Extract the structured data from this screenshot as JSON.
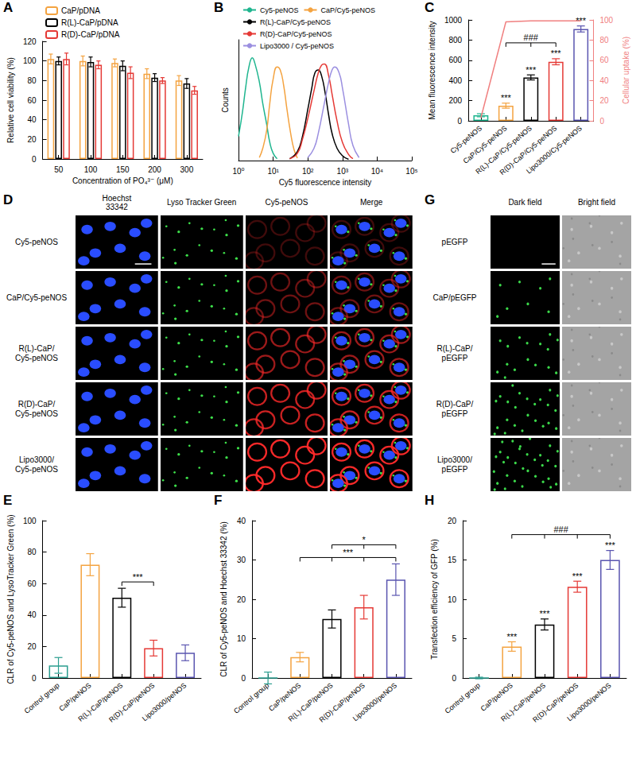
{
  "chart_data": [
    {
      "panel": "A",
      "type": "bar",
      "x_label": "Concentration of PO₄³⁻ (μM)",
      "y_label": "Relative cell viability (%)",
      "categories": [
        "50",
        "100",
        "150",
        "200",
        "300"
      ],
      "series": [
        {
          "name": "CaP/pDNA",
          "color": "#f4a340",
          "values": [
            102,
            100,
            98,
            87,
            80
          ],
          "errors": [
            5,
            5,
            4,
            5,
            5
          ]
        },
        {
          "name": "R(L)-CaP/pDNA",
          "color": "#000000",
          "values": [
            100,
            99,
            95,
            83,
            77
          ],
          "errors": [
            4,
            5,
            5,
            4,
            5
          ]
        },
        {
          "name": "R(D)-CaP/pDNA",
          "color": "#e53935",
          "values": [
            102,
            96,
            88,
            80,
            70
          ],
          "errors": [
            6,
            4,
            6,
            3,
            4
          ]
        }
      ],
      "ylim": [
        0,
        120
      ],
      "yticks": [
        0,
        20,
        40,
        60,
        80,
        100,
        120
      ],
      "legend": "top-left",
      "grid": false
    },
    {
      "panel": "B",
      "type": "line",
      "x_label": "Cy5 fluorescence intensity",
      "y_label": "Counts",
      "log": "x",
      "xlim": [
        1,
        100000
      ],
      "xticks": [
        {
          "value": 1,
          "label": "10⁰"
        },
        {
          "value": 10,
          "label": "10¹"
        },
        {
          "value": 100,
          "label": "10²"
        },
        {
          "value": 1000,
          "label": "10³"
        },
        {
          "value": 10000,
          "label": "10⁴"
        },
        {
          "value": 100000,
          "label": "10⁵"
        }
      ],
      "ylim": [
        0,
        200
      ],
      "tick_labels": "x",
      "series": [
        {
          "name": "Cy5-peNOS",
          "color": "#1fb58f",
          "x": [
            1,
            1.3,
            1.6,
            2,
            2.5,
            3,
            4,
            5,
            6.5,
            8,
            10,
            13
          ],
          "values": [
            40,
            80,
            120,
            155,
            170,
            160,
            130,
            95,
            60,
            30,
            12,
            3
          ]
        },
        {
          "name": "CaP/Cy5-peNOS",
          "color": "#f4a340",
          "x": [
            4,
            5,
            6.5,
            8,
            10,
            13,
            16,
            20,
            25,
            32,
            40,
            50
          ],
          "values": [
            5,
            20,
            50,
            95,
            135,
            155,
            150,
            125,
            85,
            45,
            18,
            4
          ]
        },
        {
          "name": "R(L)-CaP/Cy5-peNOS",
          "color": "#000000",
          "x": [
            30,
            50,
            70,
            100,
            130,
            160,
            200,
            250,
            320,
            400,
            500,
            700,
            1000,
            1500
          ],
          "values": [
            3,
            15,
            40,
            85,
            120,
            145,
            150,
            140,
            110,
            75,
            45,
            20,
            8,
            2
          ]
        },
        {
          "name": "R(D)-CaP/Cy5-peNOS",
          "color": "#e53935",
          "x": [
            30,
            50,
            70,
            100,
            150,
            200,
            250,
            300,
            400,
            500,
            700,
            1000,
            1500,
            2000
          ],
          "values": [
            3,
            12,
            35,
            70,
            115,
            145,
            158,
            160,
            140,
            110,
            65,
            30,
            10,
            3
          ]
        },
        {
          "name": "Lipo3000 / Cy5-peNOS",
          "color": "#9b8fe0",
          "x": [
            100,
            150,
            200,
            300,
            400,
            500,
            600,
            800,
            1000,
            1500,
            2000,
            3000
          ],
          "values": [
            5,
            20,
            45,
            95,
            130,
            150,
            155,
            145,
            120,
            60,
            25,
            5
          ]
        }
      ],
      "legend": "top-left",
      "grid": false
    },
    {
      "panel": "C",
      "type": "bar",
      "y_label": "Mean fluorescence intensity",
      "y2_label": "Cellular uptake (%)",
      "categories": [
        "Cy5-peNOS",
        "CaP/Cy5-peNOS",
        "R(L)-CaP/Cy5-peNOS",
        "R(D)-CaP/Cy5-peNOS",
        "Lipo3000/Cy5-peNOS"
      ],
      "series": [
        {
          "type": "bar",
          "colors": [
            "#1fb58f",
            "#f4a340",
            "#000000",
            "#e53935",
            "#5a55b0"
          ],
          "values": [
            55,
            150,
            430,
            585,
            910
          ],
          "errors": [
            15,
            25,
            25,
            30,
            30
          ]
        },
        {
          "type": "line",
          "axis": "y2",
          "color": "#f08080",
          "values": [
            3,
            98,
            99,
            99,
            99
          ]
        }
      ],
      "ylim": [
        0,
        1000
      ],
      "yticks": [
        0,
        200,
        400,
        600,
        800,
        1000
      ],
      "y2lim": [
        0,
        100
      ],
      "y2ticks": [
        0,
        20,
        40,
        60,
        80,
        100
      ],
      "annotations": [
        null,
        "***",
        "***",
        "***",
        "***"
      ],
      "brackets": [
        {
          "from": [
            1
          ],
          "to": [
            2,
            3
          ],
          "label": "###"
        }
      ],
      "grid": false
    },
    {
      "panel": "D",
      "type": "image_grid",
      "columns": [
        "Hoechst\n33342",
        "Lyso Tracker Green",
        "Cy5-peNOS",
        "Merge"
      ],
      "rows": [
        "Cy5-peNOS",
        "CaP/Cy5-peNOS",
        "R(L)-CaP/\nCy5-peNOS",
        "R(D)-CaP/\nCy5-peNOS",
        "Lipo3000/\nCy5-peNOS"
      ]
    },
    {
      "panel": "G",
      "type": "image_grid",
      "columns": [
        "Dark field",
        "Bright field"
      ],
      "rows": [
        "pEGFP",
        "CaP/pEGFP",
        "R(L)-CaP/\npEGFP",
        "R(D)-CaP/\npEGFP",
        "Lipo3000/\npEGFP"
      ]
    },
    {
      "panel": "E",
      "type": "bar",
      "y_label": "CLR of Cy5-peNOS and LysoTracker Green (%)",
      "categories": [
        "Control group",
        "CaP/peNOS",
        "R(L)-CaP/peNOS",
        "R(D)-CaP/peNOS",
        "Lipo3000/peNOS"
      ],
      "series": [
        {
          "type": "bar",
          "colors": [
            "#2a9d8f",
            "#f4a340",
            "#000000",
            "#e53935",
            "#5a55b0"
          ],
          "values": [
            8,
            72,
            51,
            19,
            16
          ],
          "errors": [
            5,
            7,
            6,
            5,
            5
          ]
        }
      ],
      "ylim": [
        0,
        100
      ],
      "yticks": [
        0,
        20,
        40,
        60,
        80,
        100
      ],
      "brackets": [
        {
          "from": [
            2
          ],
          "to": [
            3
          ],
          "label": "***"
        }
      ],
      "grid": false
    },
    {
      "panel": "F",
      "type": "bar",
      "y_label": "CLR of Cy5-peNOS and Hoechst 33342 (%)",
      "categories": [
        "Control group",
        "CaP/peNOS",
        "R(L)-CaP/peNOS",
        "R(D)-CaP/peNOS",
        "Lipo3000/peNOS"
      ],
      "series": [
        {
          "type": "bar",
          "colors": [
            "#2a9d8f",
            "#f4a340",
            "#000000",
            "#e53935",
            "#5a55b0"
          ],
          "values": [
            0,
            5.3,
            15,
            18,
            25
          ],
          "errors": [
            1.5,
            1.2,
            2.3,
            3,
            4
          ]
        }
      ],
      "ylim": [
        0,
        40
      ],
      "yticks": [
        0,
        10,
        20,
        30,
        40
      ],
      "brackets": [
        {
          "from": [
            1
          ],
          "to": [
            2,
            3,
            4
          ],
          "label": "***"
        },
        {
          "from": [
            2,
            3
          ],
          "to": [
            4
          ],
          "label": "*"
        }
      ],
      "grid": false
    },
    {
      "panel": "H",
      "type": "bar",
      "y_label": "Transfection efficiency of GFP (%)",
      "categories": [
        "Control group",
        "CaP/peNOS",
        "R(L)-CaP/peNOS",
        "R(D)-CaP/peNOS",
        "Lipo3000/peNOS"
      ],
      "series": [
        {
          "type": "bar",
          "colors": [
            "#2a9d8f",
            "#f4a340",
            "#000000",
            "#e53935",
            "#5a55b0"
          ],
          "values": [
            0,
            4,
            6.8,
            11.6,
            15
          ],
          "errors": [
            0.1,
            0.6,
            0.7,
            0.7,
            1.2
          ]
        }
      ],
      "ylim": [
        0,
        20
      ],
      "yticks": [
        0,
        5,
        10,
        15,
        20
      ],
      "annotations": [
        null,
        "***",
        "***",
        "***",
        "***"
      ],
      "brackets": [
        {
          "from": [
            1
          ],
          "to": [
            2,
            3,
            4
          ],
          "label": "###"
        }
      ],
      "grid": false
    }
  ]
}
